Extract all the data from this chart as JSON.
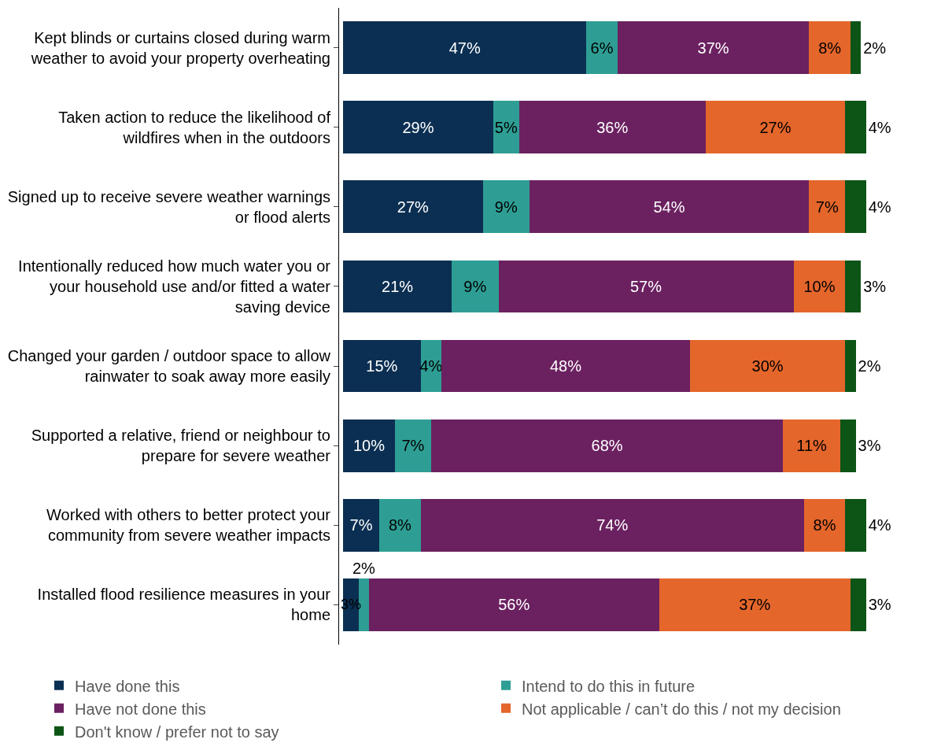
{
  "chart_data": {
    "type": "bar",
    "orientation": "horizontal",
    "stacked": true,
    "legend": "bottom",
    "categories": [
      "Kept blinds or curtains closed during warm weather to avoid your property overheating",
      "Taken action to reduce the likelihood of wildfires when in the outdoors",
      "Signed up to receive severe weather warnings or flood alerts",
      "Intentionally reduced how much water you or your household use and/or fitted a water saving device",
      "Changed your garden / outdoor space to allow rainwater to soak away more easily",
      "Supported a relative, friend or neighbour to prepare for severe weather",
      "Worked with others to better protect your community from severe weather impacts",
      "Installed flood resilience measures in your home"
    ],
    "series": [
      {
        "name": "Have done this",
        "color": "#0b2f52",
        "values": [
          47,
          29,
          27,
          21,
          15,
          10,
          7,
          3
        ],
        "value_labels": [
          "47%",
          "29%",
          "27%",
          "21%",
          "15%",
          "10%",
          "7%",
          "3%"
        ]
      },
      {
        "name": "Intend to do this in future",
        "color": "#2e9e94",
        "values": [
          6,
          5,
          9,
          9,
          4,
          7,
          8,
          2
        ],
        "value_labels": [
          "6%",
          "5%",
          "9%",
          "9%",
          "4%",
          "7%",
          "8%",
          "2%"
        ]
      },
      {
        "name": "Have not done this",
        "color": "#6b2160",
        "values": [
          37,
          36,
          54,
          57,
          48,
          68,
          74,
          56
        ],
        "value_labels": [
          "37%",
          "36%",
          "54%",
          "57%",
          "48%",
          "68%",
          "74%",
          "56%"
        ]
      },
      {
        "name": "Not applicable / can’t do this / not my decision",
        "color": "#e4662b",
        "values": [
          8,
          27,
          7,
          10,
          30,
          11,
          8,
          37
        ],
        "value_labels": [
          "8%",
          "27%",
          "7%",
          "10%",
          "30%",
          "11%",
          "8%",
          "37%"
        ]
      },
      {
        "name": "Don't know / prefer not to say",
        "color": "#0d5417",
        "values": [
          2,
          4,
          4,
          3,
          2,
          3,
          4,
          3
        ],
        "value_labels": [
          "2%",
          "4%",
          "4%",
          "3%",
          "2%",
          "3%",
          "4%",
          "3%"
        ]
      }
    ]
  }
}
